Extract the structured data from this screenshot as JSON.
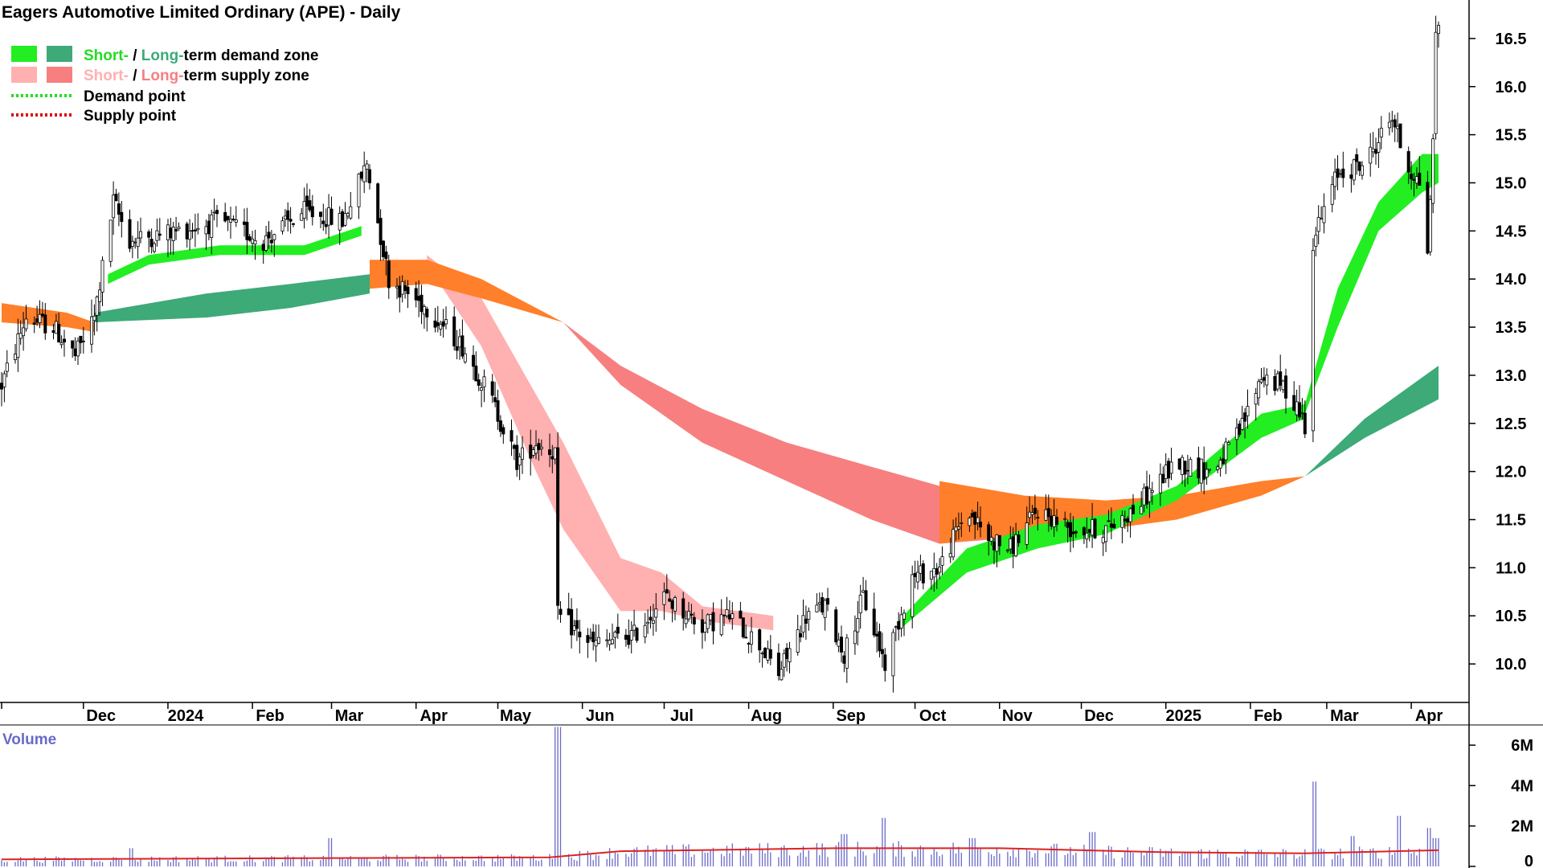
{
  "colors": {
    "short_demand": "#22ee22",
    "long_demand": "#3daa78",
    "short_supply": "#ffb0b0",
    "long_supply": "#f77f80",
    "overlap": "#ff7f2a",
    "demand_point": "#22dd22",
    "supply_point": "#dd0000",
    "volume_bar": "#6a6ac8",
    "volume_avg": "#dd2222"
  },
  "chart_data": {
    "type": "candlestick",
    "title": "Eagers Automotive Limited Ordinary (APE) - Daily",
    "legend": {
      "placement": "top-left",
      "items": [
        {
          "name": "demand-zone",
          "part_a": "Short-",
          "part_b": " / ",
          "part_c": "Long-",
          "part_d": "term demand zone"
        },
        {
          "name": "supply-zone",
          "part_a": "Short-",
          "part_b": " / ",
          "part_c": "Long-",
          "part_d": "term supply zone"
        },
        {
          "name": "demand-point",
          "label": "Demand point"
        },
        {
          "name": "supply-point",
          "label": "Supply point"
        }
      ]
    },
    "x_range": [
      "2023-11-01",
      "2025-04-11"
    ],
    "x_ticks": [
      {
        "date": "2023-12-01",
        "label": "Dec"
      },
      {
        "date": "2024-01-01",
        "label": "2024"
      },
      {
        "date": "2024-02-01",
        "label": "Feb"
      },
      {
        "date": "2024-03-01",
        "label": "Mar"
      },
      {
        "date": "2024-04-01",
        "label": "Apr"
      },
      {
        "date": "2024-05-01",
        "label": "May"
      },
      {
        "date": "2024-06-01",
        "label": "Jun"
      },
      {
        "date": "2024-07-01",
        "label": "Jul"
      },
      {
        "date": "2024-08-01",
        "label": "Aug"
      },
      {
        "date": "2024-09-01",
        "label": "Sep"
      },
      {
        "date": "2024-10-01",
        "label": "Oct"
      },
      {
        "date": "2024-11-01",
        "label": "Nov"
      },
      {
        "date": "2024-12-01",
        "label": "Dec"
      },
      {
        "date": "2025-01-01",
        "label": "2025"
      },
      {
        "date": "2025-02-01",
        "label": "Feb"
      },
      {
        "date": "2025-03-01",
        "label": "Mar"
      },
      {
        "date": "2025-04-01",
        "label": "Apr"
      }
    ],
    "ylim": [
      9.6,
      16.9
    ],
    "y_ticks": [
      10.0,
      10.5,
      11.0,
      11.5,
      12.0,
      12.5,
      13.0,
      13.5,
      14.0,
      14.5,
      15.0,
      15.5,
      16.0,
      16.5
    ],
    "price_path": [
      [
        "2023-11-01",
        12.9
      ],
      [
        "2023-11-10",
        13.6
      ],
      [
        "2023-11-20",
        13.5
      ],
      [
        "2023-11-28",
        13.2
      ],
      [
        "2023-12-05",
        13.6
      ],
      [
        "2023-12-12",
        14.8
      ],
      [
        "2023-12-18",
        14.4
      ],
      [
        "2024-01-05",
        14.5
      ],
      [
        "2024-01-20",
        14.6
      ],
      [
        "2024-02-05",
        14.4
      ],
      [
        "2024-02-20",
        14.7
      ],
      [
        "2024-03-05",
        14.6
      ],
      [
        "2024-03-14",
        15.2
      ],
      [
        "2024-03-22",
        14.0
      ],
      [
        "2024-04-05",
        13.7
      ],
      [
        "2024-04-18",
        13.3
      ],
      [
        "2024-04-28",
        12.8
      ],
      [
        "2024-05-08",
        12.1
      ],
      [
        "2024-05-15",
        12.3
      ],
      [
        "2024-05-22",
        12.2
      ],
      [
        "2024-05-23",
        10.5
      ],
      [
        "2024-06-05",
        10.2
      ],
      [
        "2024-06-20",
        10.3
      ],
      [
        "2024-07-01",
        10.7
      ],
      [
        "2024-07-15",
        10.4
      ],
      [
        "2024-07-25",
        10.5
      ],
      [
        "2024-08-05",
        10.2
      ],
      [
        "2024-08-12",
        9.9
      ],
      [
        "2024-08-22",
        10.5
      ],
      [
        "2024-08-29",
        10.6
      ],
      [
        "2024-09-05",
        10.1
      ],
      [
        "2024-09-12",
        10.7
      ],
      [
        "2024-09-20",
        10.0
      ],
      [
        "2024-09-30",
        10.9
      ],
      [
        "2024-10-10",
        11.0
      ],
      [
        "2024-10-20",
        11.6
      ],
      [
        "2024-10-28",
        11.3
      ],
      [
        "2024-11-05",
        11.2
      ],
      [
        "2024-11-15",
        11.6
      ],
      [
        "2024-11-28",
        11.4
      ],
      [
        "2024-12-10",
        11.4
      ],
      [
        "2024-12-20",
        11.6
      ],
      [
        "2025-01-05",
        12.1
      ],
      [
        "2025-01-18",
        12.0
      ],
      [
        "2025-01-28",
        12.4
      ],
      [
        "2025-02-05",
        13.0
      ],
      [
        "2025-02-12",
        12.9
      ],
      [
        "2025-02-18",
        12.7
      ],
      [
        "2025-02-21",
        12.5
      ],
      [
        "2025-02-24",
        14.4
      ],
      [
        "2025-03-05",
        15.1
      ],
      [
        "2025-03-15",
        15.2
      ],
      [
        "2025-03-25",
        15.7
      ],
      [
        "2025-03-30",
        15.2
      ],
      [
        "2025-04-04",
        15.0
      ],
      [
        "2025-04-07",
        14.3
      ],
      [
        "2025-04-09",
        15.4
      ],
      [
        "2025-04-10",
        16.6
      ]
    ],
    "zones": [
      {
        "kind": "short-supply",
        "color": "#ffb0b0",
        "top": [
          [
            "2024-04-05",
            14.25
          ],
          [
            "2024-04-25",
            13.8
          ],
          [
            "2024-05-15",
            12.8
          ],
          [
            "2024-05-25",
            12.3
          ],
          [
            "2024-06-15",
            11.1
          ],
          [
            "2024-06-30",
            10.95
          ],
          [
            "2024-07-15",
            10.6
          ],
          [
            "2024-08-10",
            10.5
          ]
        ],
        "bottom": [
          [
            "2024-04-05",
            14.15
          ],
          [
            "2024-04-25",
            13.3
          ],
          [
            "2024-05-15",
            12.0
          ],
          [
            "2024-05-25",
            11.4
          ],
          [
            "2024-06-15",
            10.55
          ],
          [
            "2024-06-30",
            10.55
          ],
          [
            "2024-07-15",
            10.45
          ],
          [
            "2024-08-10",
            10.35
          ]
        ]
      },
      {
        "kind": "long-supply",
        "color": "#f77f80",
        "top": [
          [
            "2024-05-25",
            13.55
          ],
          [
            "2024-06-15",
            13.1
          ],
          [
            "2024-07-15",
            12.65
          ],
          [
            "2024-08-15",
            12.3
          ],
          [
            "2024-09-15",
            12.05
          ],
          [
            "2024-10-10",
            11.85
          ],
          [
            "2024-11-01",
            11.75
          ]
        ],
        "bottom": [
          [
            "2024-05-25",
            13.55
          ],
          [
            "2024-06-15",
            12.9
          ],
          [
            "2024-07-15",
            12.3
          ],
          [
            "2024-08-15",
            11.9
          ],
          [
            "2024-09-15",
            11.5
          ],
          [
            "2024-10-10",
            11.25
          ],
          [
            "2024-11-01",
            11.3
          ]
        ]
      },
      {
        "kind": "overlap",
        "color": "#ff7f2a",
        "top": [
          [
            "2023-11-01",
            13.75
          ],
          [
            "2023-11-25",
            13.65
          ],
          [
            "2023-12-05",
            13.55
          ]
        ],
        "bottom": [
          [
            "2023-11-01",
            13.55
          ],
          [
            "2023-11-25",
            13.5
          ],
          [
            "2023-12-05",
            13.45
          ]
        ]
      },
      {
        "kind": "overlap",
        "color": "#ff7f2a",
        "top": [
          [
            "2024-03-15",
            14.2
          ],
          [
            "2024-04-05",
            14.2
          ],
          [
            "2024-04-25",
            14.0
          ],
          [
            "2024-05-25",
            13.55
          ]
        ],
        "bottom": [
          [
            "2024-03-15",
            13.9
          ],
          [
            "2024-04-05",
            13.95
          ],
          [
            "2024-04-25",
            13.8
          ],
          [
            "2024-05-25",
            13.55
          ]
        ]
      },
      {
        "kind": "overlap",
        "color": "#ff7f2a",
        "top": [
          [
            "2024-10-10",
            11.9
          ],
          [
            "2024-11-10",
            11.75
          ],
          [
            "2024-12-10",
            11.7
          ],
          [
            "2025-01-05",
            11.75
          ],
          [
            "2025-02-05",
            11.9
          ],
          [
            "2025-02-21",
            11.95
          ]
        ],
        "bottom": [
          [
            "2024-10-10",
            11.25
          ],
          [
            "2024-11-10",
            11.35
          ],
          [
            "2024-12-10",
            11.4
          ],
          [
            "2025-01-05",
            11.5
          ],
          [
            "2025-02-05",
            11.75
          ],
          [
            "2025-02-21",
            11.95
          ]
        ]
      },
      {
        "kind": "long-demand",
        "color": "#3daa78",
        "top": [
          [
            "2023-12-05",
            13.65
          ],
          [
            "2024-01-15",
            13.85
          ],
          [
            "2024-02-15",
            13.95
          ],
          [
            "2024-03-15",
            14.05
          ]
        ],
        "bottom": [
          [
            "2023-12-05",
            13.55
          ],
          [
            "2024-01-15",
            13.6
          ],
          [
            "2024-02-15",
            13.7
          ],
          [
            "2024-03-15",
            13.85
          ]
        ]
      },
      {
        "kind": "short-demand",
        "color": "#22ee22",
        "top": [
          [
            "2023-12-10",
            14.05
          ],
          [
            "2023-12-25",
            14.25
          ],
          [
            "2024-01-20",
            14.35
          ],
          [
            "2024-02-20",
            14.35
          ],
          [
            "2024-03-12",
            14.55
          ]
        ],
        "bottom": [
          [
            "2023-12-10",
            13.95
          ],
          [
            "2023-12-25",
            14.15
          ],
          [
            "2024-01-20",
            14.25
          ],
          [
            "2024-02-20",
            14.25
          ],
          [
            "2024-03-12",
            14.45
          ]
        ]
      },
      {
        "kind": "short-demand",
        "color": "#22ee22",
        "top": [
          [
            "2024-09-25",
            10.45
          ],
          [
            "2024-10-20",
            11.2
          ],
          [
            "2024-11-15",
            11.45
          ],
          [
            "2024-12-10",
            11.55
          ],
          [
            "2025-01-05",
            11.85
          ],
          [
            "2025-02-05",
            12.6
          ],
          [
            "2025-02-21",
            12.7
          ]
        ],
        "bottom": [
          [
            "2024-09-25",
            10.35
          ],
          [
            "2024-10-20",
            10.95
          ],
          [
            "2024-11-15",
            11.2
          ],
          [
            "2024-12-10",
            11.35
          ],
          [
            "2025-01-05",
            11.7
          ],
          [
            "2025-02-05",
            12.35
          ],
          [
            "2025-02-21",
            12.55
          ]
        ]
      },
      {
        "kind": "short-demand",
        "color": "#22ee22",
        "top": [
          [
            "2025-02-21",
            12.7
          ],
          [
            "2025-03-05",
            13.9
          ],
          [
            "2025-03-20",
            14.8
          ],
          [
            "2025-04-05",
            15.3
          ],
          [
            "2025-04-11",
            15.3
          ]
        ],
        "bottom": [
          [
            "2025-02-21",
            12.6
          ],
          [
            "2025-03-05",
            13.5
          ],
          [
            "2025-03-20",
            14.5
          ],
          [
            "2025-04-05",
            14.9
          ],
          [
            "2025-04-11",
            15.0
          ]
        ]
      },
      {
        "kind": "long-demand",
        "color": "#3daa78",
        "top": [
          [
            "2025-02-21",
            11.95
          ],
          [
            "2025-03-15",
            12.55
          ],
          [
            "2025-04-11",
            13.1
          ]
        ],
        "bottom": [
          [
            "2025-02-21",
            11.95
          ],
          [
            "2025-03-15",
            12.35
          ],
          [
            "2025-04-11",
            12.75
          ]
        ]
      }
    ],
    "volume": {
      "title": "Volume",
      "ylim": [
        0,
        7000000
      ],
      "y_ticks": [
        {
          "value": 0,
          "label": "0"
        },
        {
          "value": 2000000,
          "label": "2M"
        },
        {
          "value": 4000000,
          "label": "4M"
        },
        {
          "value": 6000000,
          "label": "6M"
        }
      ],
      "spikes": [
        [
          "2023-12-18",
          900000
        ],
        [
          "2024-03-01",
          1400000
        ],
        [
          "2024-05-23",
          6900000
        ],
        [
          "2024-09-05",
          1600000
        ],
        [
          "2024-09-20",
          2400000
        ],
        [
          "2024-10-22",
          1400000
        ],
        [
          "2024-12-05",
          1700000
        ],
        [
          "2025-02-24",
          4200000
        ],
        [
          "2025-03-10",
          1500000
        ],
        [
          "2025-03-28",
          2500000
        ],
        [
          "2025-04-07",
          1900000
        ],
        [
          "2025-04-10",
          1400000
        ]
      ],
      "avg": [
        [
          "2023-11-01",
          350000
        ],
        [
          "2024-05-20",
          450000
        ],
        [
          "2024-06-15",
          750000
        ],
        [
          "2024-09-01",
          900000
        ],
        [
          "2024-11-01",
          900000
        ],
        [
          "2025-01-01",
          700000
        ],
        [
          "2025-02-21",
          650000
        ],
        [
          "2025-04-11",
          800000
        ]
      ]
    }
  }
}
